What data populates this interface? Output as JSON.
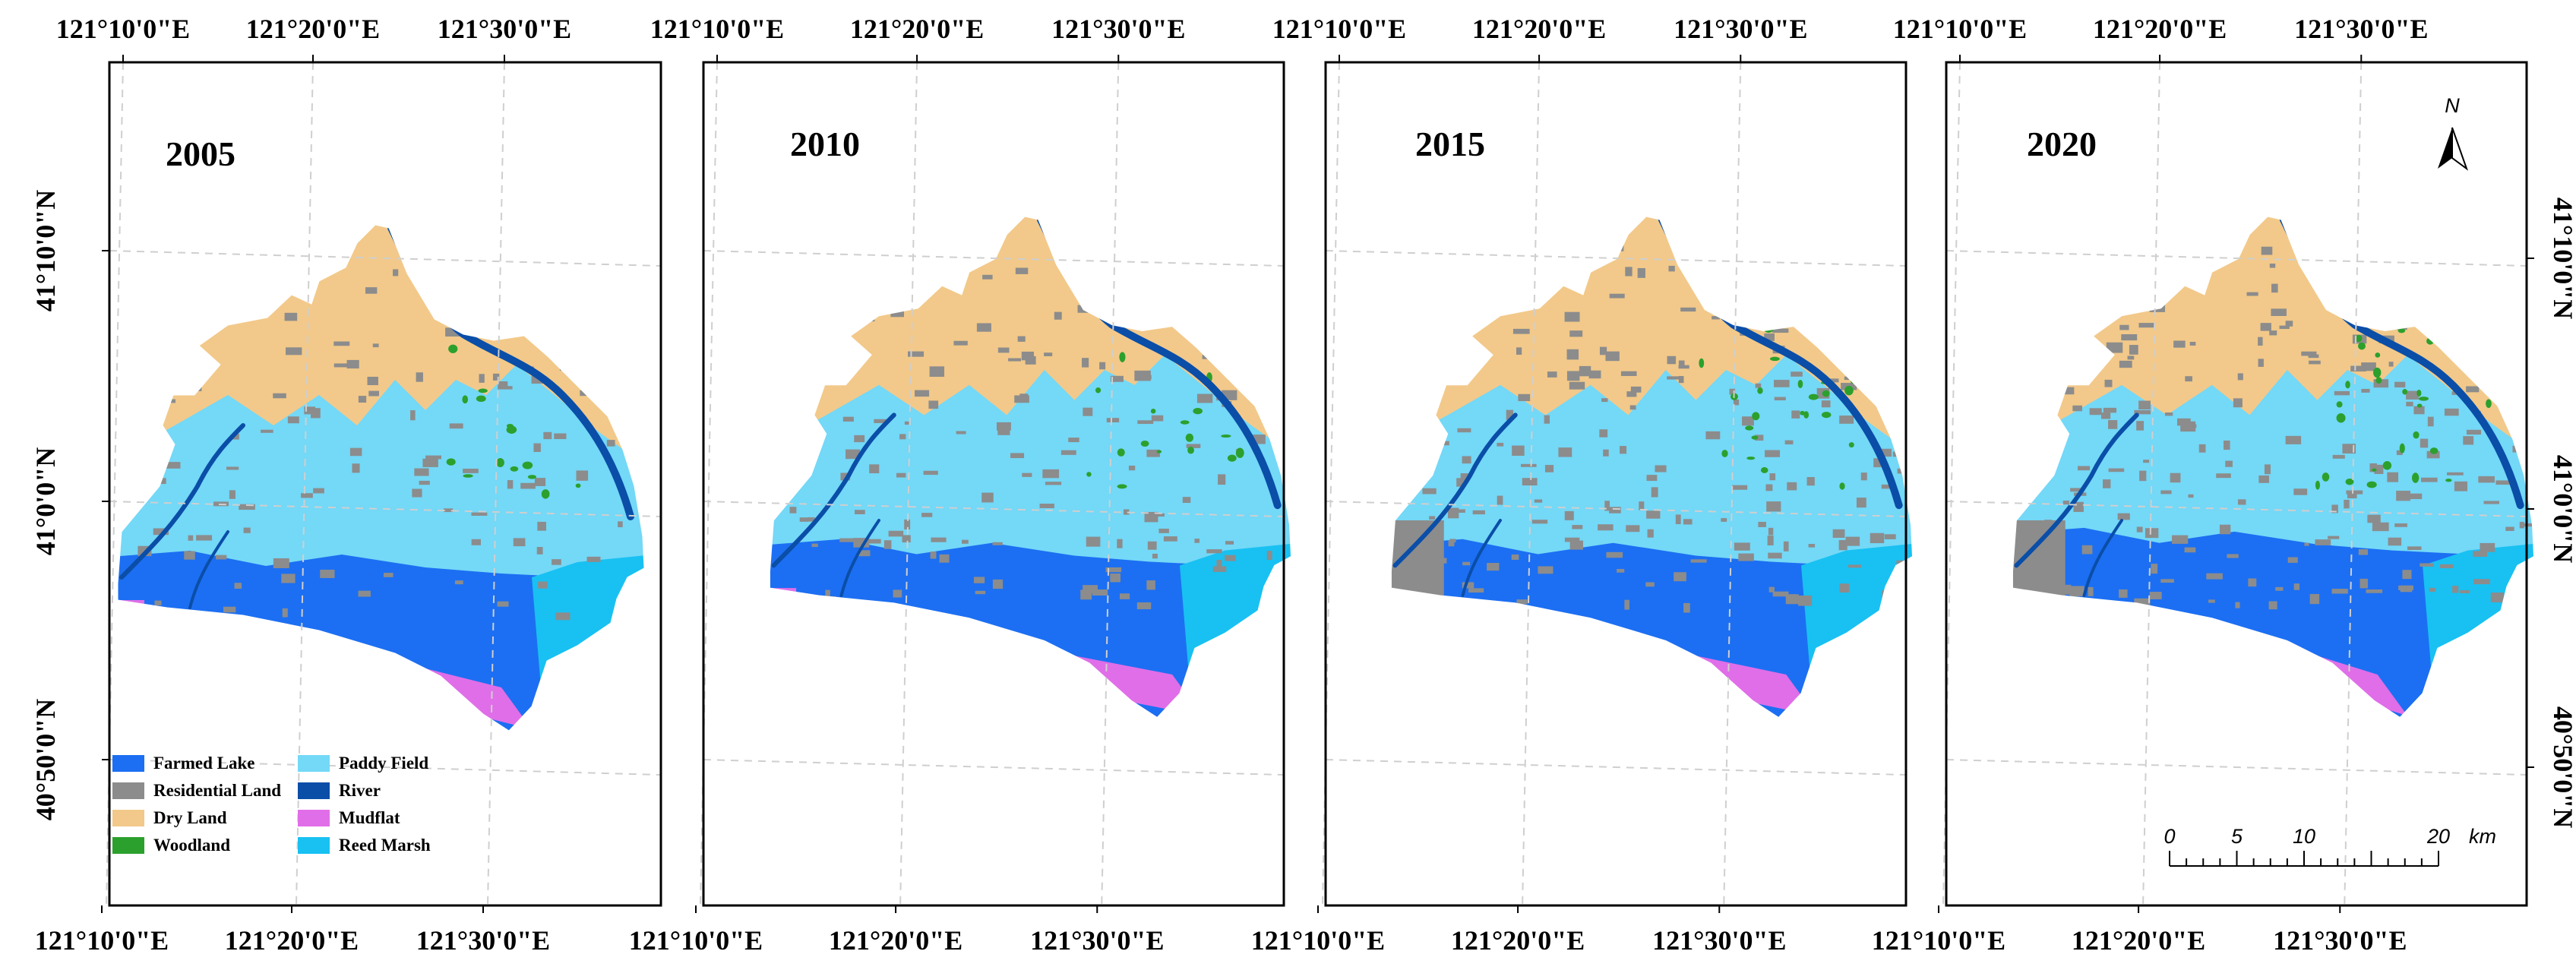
{
  "panels": [
    {
      "year": "2005",
      "top_ticks": [
        "121°10'0\"E",
        "121°20'0\"E",
        "121°30'0\"E"
      ],
      "bottom_ticks": [
        "121°10'0\"E",
        "121°20'0\"E",
        "121°30'0\"E"
      ],
      "left_ticks": [
        "41°10'0\"N",
        "41°0'0\"N",
        "40°50'0\"N"
      ]
    },
    {
      "year": "2010",
      "top_ticks": [
        "121°10'0\"E",
        "121°20'0\"E",
        "121°30'0\"E"
      ],
      "bottom_ticks": [
        "121°10'0\"E",
        "121°20'0\"E",
        "121°30'0\"E"
      ]
    },
    {
      "year": "2015",
      "top_ticks": [
        "121°10'0\"E",
        "121°20'0\"E",
        "121°30'0\"E"
      ],
      "bottom_ticks": [
        "121°10'0\"E",
        "121°20'0\"E",
        "121°30'0\"E"
      ]
    },
    {
      "year": "2020",
      "top_ticks": [
        "121°10'0\"E",
        "121°20'0\"E",
        "121°30'0\"E"
      ],
      "bottom_ticks": [
        "121°10'0\"E",
        "121°20'0\"E",
        "121°30'0\"E"
      ],
      "right_ticks": [
        "41°10'0\"N",
        "41°0'0\"N",
        "40°50'0\"N"
      ]
    }
  ],
  "legend": [
    {
      "label": "Farmed Lake",
      "color": "#1c6ff2"
    },
    {
      "label": "Residential Land",
      "color": "#8c8c8c"
    },
    {
      "label": "Dry Land",
      "color": "#f2c98a"
    },
    {
      "label": "Woodland",
      "color": "#2ca02c"
    },
    {
      "label": "Paddy Field",
      "color": "#74d8f7"
    },
    {
      "label": "River",
      "color": "#0a4ea8"
    },
    {
      "label": "Mudflat",
      "color": "#e06ee8"
    },
    {
      "label": "Reed Marsh",
      "color": "#18c1f2"
    }
  ],
  "north_arrow": {
    "label": "N",
    "icon": "north-arrow-icon"
  },
  "scale_bar": {
    "labels": [
      "0",
      "5",
      "10",
      "20"
    ],
    "unit": "km"
  }
}
